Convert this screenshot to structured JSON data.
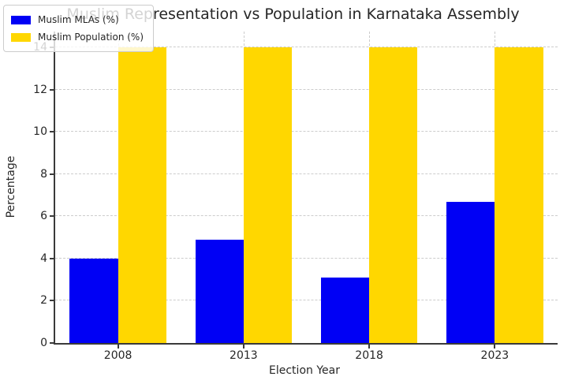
{
  "chart_data": {
    "type": "bar",
    "title": "Muslim Representation vs Population in Karnataka Assembly",
    "xlabel": "Election Year",
    "ylabel": "Percentage",
    "categories": [
      "2008",
      "2013",
      "2018",
      "2023"
    ],
    "series": [
      {
        "name": "Muslim MLAs (%)",
        "color": "#0000f5",
        "values": [
          4.0,
          4.9,
          3.1,
          6.7
        ]
      },
      {
        "name": "Muslim Population (%)",
        "color": "#ffd700",
        "values": [
          14.0,
          14.0,
          14.0,
          14.0
        ]
      }
    ],
    "ylim": [
      0,
      14.75
    ],
    "yticks": [
      0,
      2,
      4,
      6,
      8,
      10,
      12,
      14
    ],
    "grid": "both-dashed",
    "legend_position": "upper left",
    "colors": {
      "spine": "#3a3a3a",
      "gridline": "#cccccc",
      "text": "#262626"
    }
  }
}
